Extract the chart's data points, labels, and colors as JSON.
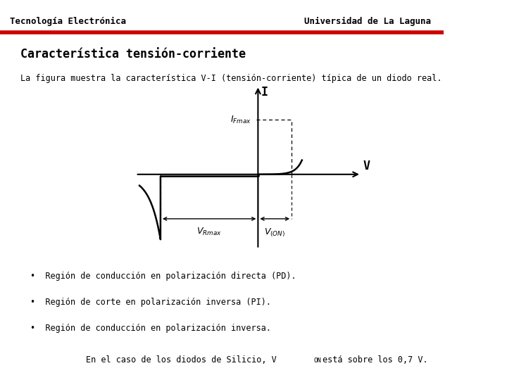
{
  "bg_color": "#ffffff",
  "header_text_left": "Tecnología Electrónica",
  "header_text_right": "Universidad de La Laguna",
  "header_line_color": "#cc0000",
  "title": "Característica tensión-corriente",
  "subtitle": "La figura muestra la característica V-I (tensión-corriente) típica de un diodo real.",
  "bullet_points": [
    "Región de conducción en polarización directa (PD).",
    "Región de corte en polarización inversa (PI).",
    "Región de conducción en polarización inversa."
  ],
  "footer_prefix": "En el caso de los diodos de Silicio, V",
  "footer_sub": "ON",
  "footer_suffix": "está sobre los 0,7 V."
}
